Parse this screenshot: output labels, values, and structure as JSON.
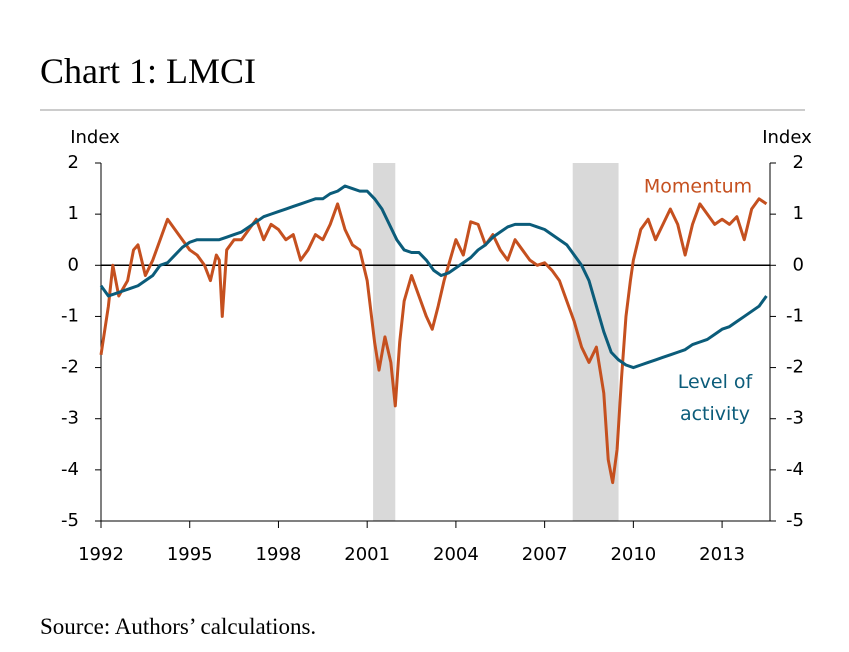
{
  "chart_data": {
    "type": "line",
    "title": "Chart 1: LMCI",
    "source": "Source: Authors’ calculations.",
    "ylabel": "Index",
    "y2label": "Index",
    "xlim": [
      1992,
      2014.62
    ],
    "xticks": [
      1992,
      1995,
      1998,
      2001,
      2004,
      2007,
      2010,
      2013
    ],
    "ylim": [
      -5,
      2
    ],
    "yticks": [
      -5,
      -4,
      -3,
      -2,
      -1,
      0,
      1,
      2
    ],
    "y2lim": [
      -5,
      2
    ],
    "y2ticks": [
      -5,
      -4,
      -3,
      -2,
      -1,
      0,
      1,
      2
    ],
    "grid": false,
    "shaded_periods": [
      [
        2001.2,
        2001.95
      ],
      [
        2007.95,
        2009.5
      ]
    ],
    "series": [
      {
        "name": "Momentum",
        "color": "#c5501f",
        "x": [
          1992.0,
          1992.25,
          1992.4,
          1992.6,
          1992.9,
          1993.1,
          1993.25,
          1993.5,
          1993.75,
          1994.0,
          1994.25,
          1994.5,
          1994.75,
          1995.0,
          1995.25,
          1995.5,
          1995.7,
          1995.9,
          1996.0,
          1996.1,
          1996.25,
          1996.5,
          1996.75,
          1997.0,
          1997.25,
          1997.5,
          1997.75,
          1998.0,
          1998.25,
          1998.5,
          1998.75,
          1999.0,
          1999.25,
          1999.5,
          1999.75,
          2000.0,
          2000.25,
          2000.5,
          2000.75,
          2001.0,
          2001.25,
          2001.4,
          2001.6,
          2001.8,
          2001.95,
          2002.1,
          2002.25,
          2002.5,
          2002.75,
          2003.0,
          2003.2,
          2003.4,
          2003.6,
          2003.8,
          2004.0,
          2004.25,
          2004.5,
          2004.75,
          2005.0,
          2005.25,
          2005.5,
          2005.75,
          2006.0,
          2006.25,
          2006.5,
          2006.75,
          2007.0,
          2007.25,
          2007.5,
          2007.75,
          2008.0,
          2008.25,
          2008.5,
          2008.75,
          2009.0,
          2009.15,
          2009.3,
          2009.45,
          2009.6,
          2009.75,
          2009.9,
          2010.0,
          2010.25,
          2010.5,
          2010.75,
          2011.0,
          2011.25,
          2011.5,
          2011.75,
          2012.0,
          2012.25,
          2012.5,
          2012.75,
          2013.0,
          2013.25,
          2013.5,
          2013.75,
          2014.0,
          2014.25,
          2014.5
        ],
        "values": [
          -1.75,
          -0.8,
          0.0,
          -0.6,
          -0.3,
          0.3,
          0.4,
          -0.2,
          0.1,
          0.5,
          0.9,
          0.7,
          0.5,
          0.3,
          0.2,
          0.0,
          -0.3,
          0.2,
          0.1,
          -1.0,
          0.3,
          0.5,
          0.5,
          0.7,
          0.9,
          0.5,
          0.8,
          0.7,
          0.5,
          0.6,
          0.1,
          0.3,
          0.6,
          0.5,
          0.8,
          1.2,
          0.7,
          0.4,
          0.3,
          -0.3,
          -1.5,
          -2.05,
          -1.4,
          -1.9,
          -2.75,
          -1.5,
          -0.7,
          -0.2,
          -0.6,
          -1.0,
          -1.25,
          -0.8,
          -0.3,
          0.1,
          0.5,
          0.2,
          0.85,
          0.8,
          0.4,
          0.6,
          0.3,
          0.1,
          0.5,
          0.3,
          0.1,
          0.0,
          0.05,
          -0.1,
          -0.3,
          -0.7,
          -1.1,
          -1.6,
          -1.9,
          -1.6,
          -2.5,
          -3.8,
          -4.25,
          -3.6,
          -2.2,
          -1.0,
          -0.3,
          0.1,
          0.7,
          0.9,
          0.5,
          0.8,
          1.1,
          0.8,
          0.2,
          0.8,
          1.2,
          1.0,
          0.8,
          0.9,
          0.8,
          0.95,
          0.5,
          1.1,
          1.3,
          1.2
        ]
      },
      {
        "name": "Level of activity",
        "color": "#0b5c7a",
        "x": [
          1992.0,
          1992.25,
          1992.5,
          1992.75,
          1993.0,
          1993.25,
          1993.5,
          1993.75,
          1994.0,
          1994.25,
          1994.5,
          1994.75,
          1995.0,
          1995.25,
          1995.5,
          1995.75,
          1996.0,
          1996.25,
          1996.5,
          1996.75,
          1997.0,
          1997.25,
          1997.5,
          1997.75,
          1998.0,
          1998.25,
          1998.5,
          1998.75,
          1999.0,
          1999.25,
          1999.5,
          1999.75,
          2000.0,
          2000.25,
          2000.5,
          2000.75,
          2001.0,
          2001.25,
          2001.5,
          2001.75,
          2002.0,
          2002.25,
          2002.5,
          2002.75,
          2003.0,
          2003.25,
          2003.5,
          2003.75,
          2004.0,
          2004.25,
          2004.5,
          2004.75,
          2005.0,
          2005.25,
          2005.5,
          2005.75,
          2006.0,
          2006.25,
          2006.5,
          2006.75,
          2007.0,
          2007.25,
          2007.5,
          2007.75,
          2008.0,
          2008.25,
          2008.5,
          2008.75,
          2009.0,
          2009.25,
          2009.5,
          2009.75,
          2010.0,
          2010.25,
          2010.5,
          2010.75,
          2011.0,
          2011.25,
          2011.5,
          2011.75,
          2012.0,
          2012.25,
          2012.5,
          2012.75,
          2013.0,
          2013.25,
          2013.5,
          2013.75,
          2014.0,
          2014.25,
          2014.5
        ],
        "values": [
          -0.4,
          -0.6,
          -0.55,
          -0.5,
          -0.45,
          -0.4,
          -0.3,
          -0.2,
          0.0,
          0.05,
          0.2,
          0.35,
          0.45,
          0.5,
          0.5,
          0.5,
          0.5,
          0.55,
          0.6,
          0.65,
          0.75,
          0.85,
          0.95,
          1.0,
          1.05,
          1.1,
          1.15,
          1.2,
          1.25,
          1.3,
          1.3,
          1.4,
          1.45,
          1.55,
          1.5,
          1.45,
          1.45,
          1.3,
          1.1,
          0.8,
          0.5,
          0.3,
          0.25,
          0.25,
          0.1,
          -0.1,
          -0.2,
          -0.15,
          -0.05,
          0.05,
          0.15,
          0.3,
          0.4,
          0.55,
          0.65,
          0.75,
          0.8,
          0.8,
          0.8,
          0.75,
          0.7,
          0.6,
          0.5,
          0.4,
          0.2,
          0.0,
          -0.3,
          -0.8,
          -1.3,
          -1.7,
          -1.85,
          -1.95,
          -2.0,
          -1.95,
          -1.9,
          -1.85,
          -1.8,
          -1.75,
          -1.7,
          -1.65,
          -1.55,
          -1.5,
          -1.45,
          -1.35,
          -1.25,
          -1.2,
          -1.1,
          -1.0,
          -0.9,
          -0.8,
          -0.6
        ]
      }
    ]
  }
}
